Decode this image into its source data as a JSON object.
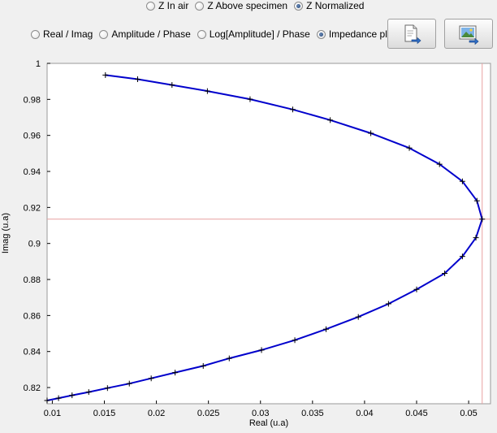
{
  "mode_options": [
    {
      "label": "Z In air",
      "checked": false
    },
    {
      "label": "Z Above specimen",
      "checked": false
    },
    {
      "label": "Z Normalized",
      "checked": true
    }
  ],
  "view_options": [
    {
      "label": "Real / Imag",
      "checked": false
    },
    {
      "label": "Amplitude / Phase",
      "checked": false
    },
    {
      "label": "Log[Amplitude] / Phase",
      "checked": false
    },
    {
      "label": "Impedance plane",
      "checked": true
    }
  ],
  "toolbar": {
    "export_icon": "document-export-icon",
    "image_export_icon": "image-export-icon"
  },
  "chart_data": {
    "type": "line",
    "xlabel": "Real (u.a)",
    "ylabel": "Imag (u.a)",
    "xlim": [
      0.0095,
      0.0521
    ],
    "ylim": [
      0.811,
      1.0
    ],
    "xticks": [
      0.01,
      0.015,
      0.02,
      0.025,
      0.03,
      0.035,
      0.04,
      0.045,
      0.05
    ],
    "xtick_labels": [
      "0.01",
      "0.015",
      "0.02",
      "0.025",
      "0.03",
      "0.035",
      "0.04",
      "0.045",
      "0.05"
    ],
    "yticks": [
      0.82,
      0.84,
      0.86,
      0.88,
      0.9,
      0.92,
      0.94,
      0.96,
      0.98,
      1.0
    ],
    "ytick_labels": [
      "0.82",
      "0.84",
      "0.86",
      "0.88",
      "0.9",
      "0.92",
      "0.94",
      "0.96",
      "0.98",
      "1"
    ],
    "line_color": "#0000cc",
    "cursor_color": "#e8a0a0",
    "cursor": {
      "x": 0.0513,
      "y": 0.9135
    },
    "series": [
      {
        "points": [
          [
            0.0151,
            0.9935
          ],
          [
            0.0182,
            0.9912
          ],
          [
            0.0215,
            0.988
          ],
          [
            0.0249,
            0.9846
          ],
          [
            0.029,
            0.9801
          ],
          [
            0.0331,
            0.9744
          ],
          [
            0.0367,
            0.9685
          ],
          [
            0.0406,
            0.9612
          ],
          [
            0.0443,
            0.953
          ],
          [
            0.0472,
            0.944
          ],
          [
            0.0494,
            0.9345
          ],
          [
            0.0508,
            0.9237
          ],
          [
            0.0513,
            0.9135
          ],
          [
            0.0507,
            0.9032
          ],
          [
            0.0494,
            0.8928
          ],
          [
            0.0477,
            0.8834
          ],
          [
            0.045,
            0.8745
          ],
          [
            0.0423,
            0.8665
          ],
          [
            0.0394,
            0.8592
          ],
          [
            0.0363,
            0.8524
          ],
          [
            0.0333,
            0.8463
          ],
          [
            0.0301,
            0.8408
          ],
          [
            0.027,
            0.8362
          ],
          [
            0.0245,
            0.832
          ],
          [
            0.0218,
            0.8283
          ],
          [
            0.0195,
            0.8251
          ],
          [
            0.0174,
            0.8222
          ],
          [
            0.0153,
            0.8197
          ],
          [
            0.0135,
            0.8175
          ],
          [
            0.0119,
            0.8157
          ],
          [
            0.0106,
            0.8141
          ],
          [
            0.0095,
            0.8128
          ]
        ]
      }
    ]
  }
}
